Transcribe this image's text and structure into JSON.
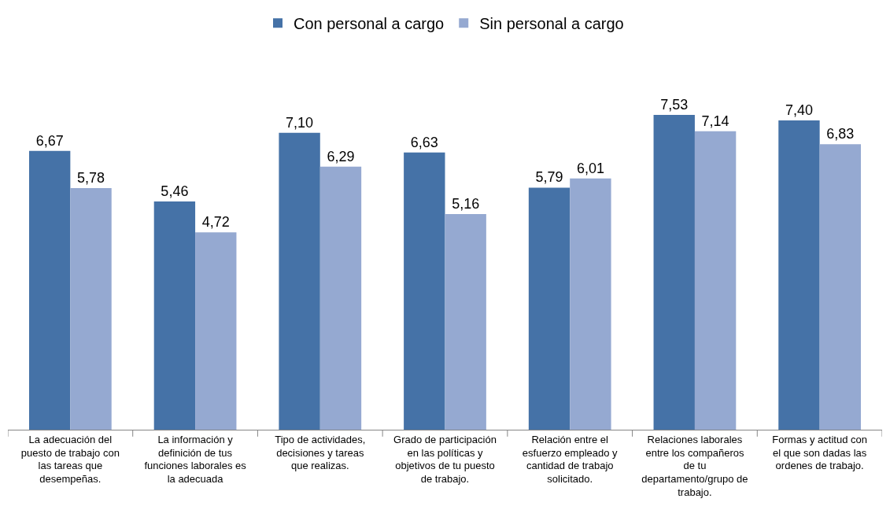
{
  "chart_data": {
    "type": "bar",
    "categories": [
      "La adecuación del puesto de trabajo con las tareas que desempeñas.",
      "La información y definición de tus funciones laborales es la adecuada",
      "Tipo de actividades, decisiones y tareas que realizas.",
      "Grado de participación en las políticas y objetivos de tu puesto de trabajo.",
      "Relación entre el esfuerzo empleado y cantidad de trabajo solicitado.",
      "Relaciones laborales entre los compañeros de tu departamento/grupo de trabajo.",
      "Formas y actitud con el que son dadas las ordenes de trabajo."
    ],
    "series": [
      {
        "name": "Con personal a cargo",
        "color": "#4572a7",
        "values": [
          6.67,
          5.46,
          7.1,
          6.63,
          5.79,
          7.53,
          7.4
        ],
        "value_labels": [
          "6,67",
          "5,46",
          "7,10",
          "6,63",
          "5,79",
          "7,53",
          "7,40"
        ]
      },
      {
        "name": "Sin personal a cargo",
        "color": "#95a9d1",
        "values": [
          5.78,
          4.72,
          6.29,
          5.16,
          6.01,
          7.14,
          6.83
        ],
        "value_labels": [
          "5,78",
          "4,72",
          "6,29",
          "5,16",
          "6,01",
          "7,14",
          "6,83"
        ]
      }
    ],
    "legend": "top",
    "tick_labels": "x"
  }
}
